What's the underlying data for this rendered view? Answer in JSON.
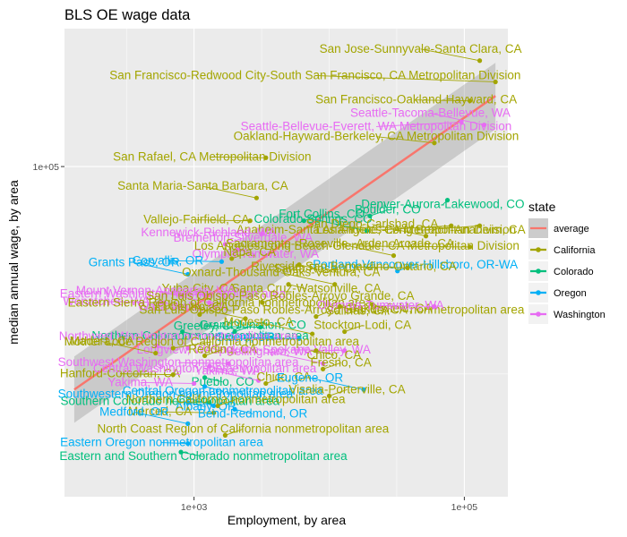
{
  "chart_data": {
    "type": "scatter",
    "title": "BLS OE wage data",
    "xlabel": "Employment, by area",
    "ylabel": "median annual wage, by area",
    "x_scale": "log10",
    "y_scale": "log10",
    "xlim": [
      110,
      210000
    ],
    "ylim": [
      16000,
      215000
    ],
    "x_ticks": [
      {
        "value": 1000,
        "label": "1e+03"
      },
      {
        "value": 100000,
        "label": "1e+05"
      }
    ],
    "y_ticks": [
      {
        "value": 100000,
        "label": "1e+05"
      }
    ],
    "grid": true,
    "panel_background": "#ebebeb",
    "legend": {
      "title": "state",
      "position": "right",
      "entries": [
        {
          "name": "average",
          "color": "#F8766D"
        },
        {
          "name": "California",
          "color": "#A3A500"
        },
        {
          "name": "Colorado",
          "color": "#00BF7D"
        },
        {
          "name": "Oregon",
          "color": "#00B0F6"
        },
        {
          "name": "Washington",
          "color": "#E76BF3"
        }
      ]
    },
    "trend": {
      "x": [
        130,
        170000
      ],
      "y": [
        29000,
        148000
      ],
      "band_halfwidth_log": 0.05
    },
    "points": [
      {
        "label": "San Jose-Sunnyvale-Santa Clara, CA",
        "state": "California",
        "x": 130000,
        "y": 180000
      },
      {
        "label": "San Francisco-Redwood City-South San Francisco, CA Metropolitan Division",
        "state": "California",
        "x": 170000,
        "y": 160000
      },
      {
        "label": "San Francisco-Oakland-Hayward, CA",
        "state": "California",
        "x": 110000,
        "y": 144000
      },
      {
        "label": "Seattle-Bellevue-Everett, WA Metropolitan Division",
        "state": "Washington",
        "x": 95000,
        "y": 128000
      },
      {
        "label": "Seattle-Tacoma-Bellevue, WA",
        "state": "Washington",
        "x": 140000,
        "y": 126000
      },
      {
        "label": "Oakland-Hayward-Berkeley, CA Metropolitan Division",
        "state": "California",
        "x": 60000,
        "y": 114000
      },
      {
        "label": "San Rafael, CA Metropolitan Division",
        "state": "California",
        "x": 3400,
        "y": 105000
      },
      {
        "label": "Denver-Aurora-Lakewood, CO",
        "state": "Colorado",
        "x": 75000,
        "y": 83000
      },
      {
        "label": "Santa Maria-Santa Barbara, CA",
        "state": "California",
        "x": 2900,
        "y": 84000
      },
      {
        "label": "Boulder, CO",
        "state": "Colorado",
        "x": 20000,
        "y": 76000
      },
      {
        "label": "Vallejo-Fairfield, CA",
        "state": "California",
        "x": 2600,
        "y": 74000
      },
      {
        "label": "Anaheim-Santa Ana-Irvine, CA Metropolitan Division",
        "state": "California",
        "x": 80000,
        "y": 72000
      },
      {
        "label": "Colorado Springs, CO",
        "state": "Colorado",
        "x": 19000,
        "y": 70000
      },
      {
        "label": "Fort Collins, CO",
        "state": "Colorado",
        "x": 6500,
        "y": 74000
      },
      {
        "label": "Kennewick-Richland, WA",
        "state": "Washington",
        "x": 3200,
        "y": 69000
      },
      {
        "label": "Los Angeles-Long Beach-Anaheim, CA",
        "state": "California",
        "x": 130000,
        "y": 72000
      },
      {
        "label": "San Diego-Carlsbad, CA",
        "state": "California",
        "x": 52000,
        "y": 68000
      },
      {
        "label": "Bremerton-Silverdale, WA",
        "state": "Washington",
        "x": 1700,
        "y": 65000
      },
      {
        "label": "Los Angeles-Long Beach-Glendale, CA Metropolitan Division",
        "state": "California",
        "x": 110000,
        "y": 64000
      },
      {
        "label": "Olympia-Tumwater, WA",
        "state": "Washington",
        "x": 2100,
        "y": 63000
      },
      {
        "label": "Sacramento--Roseville--Arden-Arcade, CA",
        "state": "California",
        "x": 30000,
        "y": 61000
      },
      {
        "label": "Napa, CA",
        "state": "California",
        "x": 1900,
        "y": 60000
      },
      {
        "label": "Corvallis, OR",
        "state": "Oregon",
        "x": 1600,
        "y": 59000
      },
      {
        "label": "Santa Rosa, CA",
        "state": "California",
        "x": 6000,
        "y": 58000
      },
      {
        "label": "Grants Pass, OR",
        "state": "Oregon",
        "x": 900,
        "y": 55000
      },
      {
        "label": "Portland-Vancouver-Hillsboro, OR-WA",
        "state": "Oregon",
        "x": 32000,
        "y": 56000
      },
      {
        "label": "Riverside-San Bernardino-Ontario, CA",
        "state": "California",
        "x": 38000,
        "y": 57000
      },
      {
        "label": "Santa Cruz-Watsonville, CA",
        "state": "California",
        "x": 5000,
        "y": 52000
      },
      {
        "label": "Oxnard-Thousand Oaks-Ventura, CA",
        "state": "California",
        "x": 11000,
        "y": 52000
      },
      {
        "label": "Yuba City, CA",
        "state": "California",
        "x": 800,
        "y": 49000
      },
      {
        "label": "Eastern Washington nonmetropolitan area",
        "state": "Washington",
        "x": 1200,
        "y": 49000
      },
      {
        "label": "Walla Walla, WA",
        "state": "Washington",
        "x": 600,
        "y": 47000
      },
      {
        "label": "Mount Vernon-Anacortes, WA",
        "state": "Washington",
        "x": 1300,
        "y": 47000
      },
      {
        "label": "San Luis Obispo-Paso Robles-Arroyo Grande, CA",
        "state": "California",
        "x": 3200,
        "y": 47000
      },
      {
        "label": "Wenatchee, WA",
        "state": "Washington",
        "x": 560,
        "y": 47000
      },
      {
        "label": "Bakersfield, CA",
        "state": "California",
        "x": 21000,
        "y": 46500
      },
      {
        "label": "Eastern Sierra Region of California nonmetropolitan area",
        "state": "California",
        "x": 1100,
        "y": 44000
      },
      {
        "label": "San Luis Obispo-Paso Robles-Arroyo Grande, CA nonmetropolitan area",
        "state": "California",
        "x": 8000,
        "y": 43500
      },
      {
        "label": "Olympia-Tumwater, WA",
        "state": "Washington",
        "x": 60000,
        "y": 46000
      },
      {
        "label": "Salinas, CA",
        "state": "California",
        "x": 12000,
        "y": 46000
      },
      {
        "label": "El Centro, CA",
        "state": "California",
        "x": 2400,
        "y": 43000
      },
      {
        "label": "Grand Junction, CO",
        "state": "Colorado",
        "x": 2000,
        "y": 40000
      },
      {
        "label": "Greeley, CO",
        "state": "Colorado",
        "x": 3100,
        "y": 41000
      },
      {
        "label": "Northern Colorado nonmetropolitan area",
        "state": "Colorado",
        "x": 820,
        "y": 40000
      },
      {
        "label": "Modesto, CA",
        "state": "California",
        "x": 7500,
        "y": 39500
      },
      {
        "label": "Stockton-Lodi, CA",
        "state": "California",
        "x": 13000,
        "y": 40000
      },
      {
        "label": "Salem, OR",
        "state": "Oregon",
        "x": 6000,
        "y": 38500
      },
      {
        "label": "Longview, WA",
        "state": "Washington",
        "x": 530,
        "y": 37000
      },
      {
        "label": "Northwest Washington nonmetropolitan area",
        "state": "Washington",
        "x": 900,
        "y": 36500
      },
      {
        "label": "Mother Lode Region of California nonmetropolitan area",
        "state": "California",
        "x": 700,
        "y": 36500
      },
      {
        "label": "Spokane-Spokane Valley, WA",
        "state": "Washington",
        "x": 13000,
        "y": 36000
      },
      {
        "label": "Chico, CA",
        "state": "California",
        "x": 8000,
        "y": 36000
      },
      {
        "label": "Madera, CA",
        "state": "California",
        "x": 520,
        "y": 35500
      },
      {
        "label": "Redding, CA",
        "state": "California",
        "x": 1200,
        "y": 35000
      },
      {
        "label": "Southwest Washington nonmetropolitan area",
        "state": "Washington",
        "x": 1800,
        "y": 33500
      },
      {
        "label": "Yakima, WA",
        "state": "Washington",
        "x": 1300,
        "y": 33000
      },
      {
        "label": "Bellingham, WA",
        "state": "Washington",
        "x": 9000,
        "y": 33500
      },
      {
        "label": "Fresno, CA",
        "state": "California",
        "x": 9000,
        "y": 32500
      },
      {
        "label": "Hanford-Corcoran, CA",
        "state": "California",
        "x": 700,
        "y": 31500
      },
      {
        "label": "Pueblo, CO",
        "state": "Colorado",
        "x": 1200,
        "y": 31000
      },
      {
        "label": "Central Washington nonmetropolitan area",
        "state": "Washington",
        "x": 3000,
        "y": 30500
      },
      {
        "label": "Chico, CA",
        "state": "California",
        "x": 3400,
        "y": 30000
      },
      {
        "label": "Yakima, WA",
        "state": "Washington",
        "x": 1000,
        "y": 30000
      },
      {
        "label": "Central Oregon nonmetropolitan area",
        "state": "Oregon",
        "x": 1200,
        "y": 29500
      },
      {
        "label": "Eugene, OR",
        "state": "Oregon",
        "x": 18000,
        "y": 29000
      },
      {
        "label": "Visalia-Porterville, CA",
        "state": "California",
        "x": 10000,
        "y": 28000
      },
      {
        "label": "Southern Colorado nonmetropolitan area",
        "state": "Colorado",
        "x": 1300,
        "y": 27000
      },
      {
        "label": "Albany, OR",
        "state": "Oregon",
        "x": 900,
        "y": 27000
      },
      {
        "label": "Southwestern Oregon nonmetropolitan area",
        "state": "Oregon",
        "x": 1400,
        "y": 26500
      },
      {
        "label": "Northern California nonmetropolitan area",
        "state": "California",
        "x": 1500,
        "y": 26500
      },
      {
        "label": "Merced, CA",
        "state": "California",
        "x": 1400,
        "y": 25500
      },
      {
        "label": "Bend-Redmond, OR",
        "state": "Oregon",
        "x": 2000,
        "y": 26000
      },
      {
        "label": "Medford, OR",
        "state": "Oregon",
        "x": 900,
        "y": 24000
      },
      {
        "label": "North Coast Region of California nonmetropolitan area",
        "state": "California",
        "x": 1700,
        "y": 22500
      },
      {
        "label": "Eastern Oregon nonmetropolitan area",
        "state": "Oregon",
        "x": 900,
        "y": 21500
      },
      {
        "label": "Eastern and Southern Colorado nonmetropolitan area",
        "state": "Colorado",
        "x": 800,
        "y": 20500
      }
    ]
  }
}
